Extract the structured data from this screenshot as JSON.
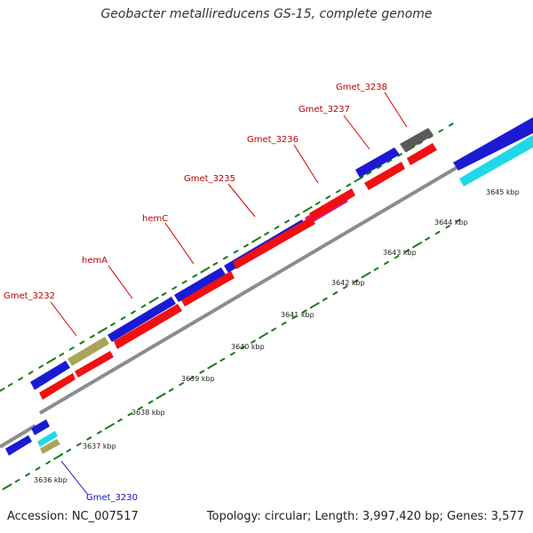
{
  "title": "Geobacter metallireducens GS-15, complete genome",
  "footer": {
    "accession": "Accession: NC_007517",
    "topology": "Topology: circular; Length: 3,997,420 bp; Genes: 3,577"
  },
  "colors": {
    "backbone": "#8c8c8c",
    "tick": "#157a15",
    "blue": "#1a1ad2",
    "red": "#f01010",
    "olive": "#a8a45a",
    "magenta": "#e0109a",
    "gray": "#5a5a5a",
    "cyan": "#20d8e8",
    "label_red": "#c00000",
    "label_blue": "#1010c8"
  },
  "scale_labels": [
    "3636 kbp",
    "3637 kbp",
    "3638 kbp",
    "3639 kbp",
    "3640 kbp",
    "3641 kbp",
    "3642 kbp",
    "3643 kbp",
    "3644 kbp",
    "3645 kbp"
  ],
  "gene_labels": [
    {
      "name": "Gmet_3232",
      "color": "label_red"
    },
    {
      "name": "hemA",
      "color": "label_red"
    },
    {
      "name": "hemC",
      "color": "label_red"
    },
    {
      "name": "Gmet_3235",
      "color": "label_red"
    },
    {
      "name": "Gmet_3236",
      "color": "label_red"
    },
    {
      "name": "Gmet_3237",
      "color": "label_red"
    },
    {
      "name": "Gmet_3238",
      "color": "label_red"
    },
    {
      "name": "Gmet_3230",
      "color": "label_blue"
    }
  ]
}
